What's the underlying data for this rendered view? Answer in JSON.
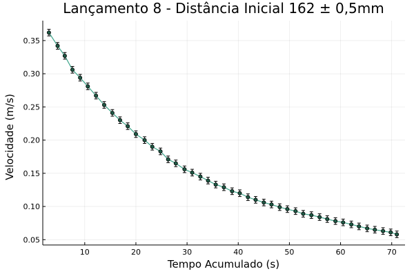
{
  "chart_data": {
    "type": "scatter",
    "title": "Lançamento 8 - Distância Inicial 162 ± 0,5mm",
    "xlabel": "Tempo Acumulado (s)",
    "ylabel": "Velocidade (m/s)",
    "xlim": [
      1.8,
      72.6
    ],
    "ylim": [
      0.042,
      0.38
    ],
    "x_ticks": [
      10,
      20,
      30,
      40,
      50,
      60,
      70
    ],
    "y_ticks": [
      0.05,
      0.1,
      0.15,
      0.2,
      0.25,
      0.3,
      0.35
    ],
    "x_tick_labels": [
      "10",
      "20",
      "30",
      "40",
      "50",
      "60",
      "70"
    ],
    "y_tick_labels": [
      "0.05",
      "0.10",
      "0.15",
      "0.20",
      "0.25",
      "0.30",
      "0.35"
    ],
    "grid": true,
    "legend": "none",
    "series": [
      {
        "name": "Velocidade",
        "line_color": "#3da58a",
        "marker_color": "#1f5a46",
        "error_bar_color": "#000000",
        "error": 0.005,
        "x": [
          3.0,
          4.7,
          6.1,
          7.6,
          9.1,
          10.6,
          12.2,
          13.8,
          15.4,
          16.9,
          18.4,
          20.0,
          21.7,
          23.2,
          24.8,
          26.3,
          27.8,
          29.5,
          31.0,
          32.6,
          34.1,
          35.6,
          37.2,
          38.8,
          40.3,
          41.9,
          43.4,
          45.0,
          46.5,
          48.1,
          49.6,
          51.2,
          52.7,
          54.3,
          55.9,
          57.4,
          59.0,
          60.5,
          62.1,
          63.6,
          65.2,
          66.7,
          68.3,
          69.8,
          71.0
        ],
        "y": [
          0.362,
          0.342,
          0.327,
          0.306,
          0.294,
          0.281,
          0.267,
          0.253,
          0.241,
          0.23,
          0.221,
          0.209,
          0.2,
          0.19,
          0.183,
          0.171,
          0.165,
          0.156,
          0.151,
          0.145,
          0.139,
          0.133,
          0.129,
          0.123,
          0.12,
          0.114,
          0.11,
          0.106,
          0.103,
          0.099,
          0.096,
          0.093,
          0.089,
          0.087,
          0.084,
          0.081,
          0.078,
          0.076,
          0.073,
          0.07,
          0.067,
          0.065,
          0.063,
          0.061,
          0.058
        ]
      }
    ]
  }
}
